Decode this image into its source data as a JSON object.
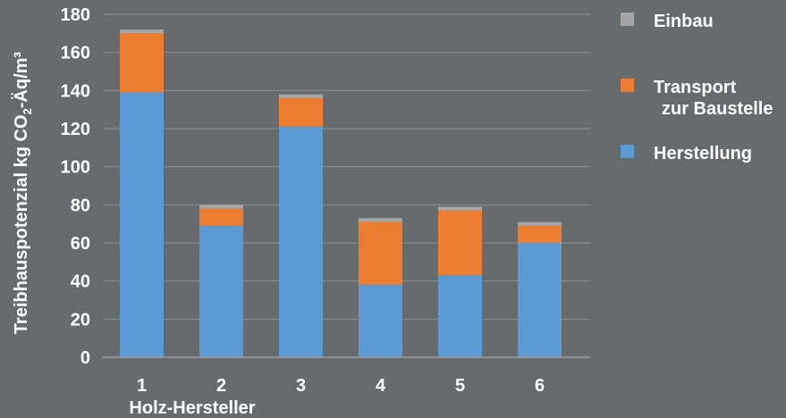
{
  "chart_data": {
    "type": "bar",
    "stacked": true,
    "categories": [
      "1",
      "2",
      "3",
      "4",
      "5",
      "6"
    ],
    "series": [
      {
        "name": "Herstellung",
        "color": "#5b9bd5",
        "values": [
          139,
          69,
          121,
          38,
          43,
          60
        ]
      },
      {
        "name": "Transport zur Baustelle",
        "label_lines": [
          "Transport",
          "zur Baustelle"
        ],
        "color": "#ed7d31",
        "values": [
          31,
          9,
          15,
          33,
          34,
          9
        ]
      },
      {
        "name": "Einbau",
        "color": "#a5a5a5",
        "values": [
          2,
          2,
          2,
          2,
          2,
          2
        ]
      }
    ],
    "xlabel": "Holz-Hersteller",
    "ylabel_main": "Treibhauspotenzial kg CO",
    "ylabel_sub": "2",
    "ylabel_tail": "-Äq/m³",
    "ylim": [
      0,
      180
    ],
    "yticks": [
      0,
      20,
      40,
      60,
      80,
      100,
      120,
      140,
      160,
      180
    ],
    "grid": true,
    "legend_position": "right",
    "legend_order": [
      "Einbau",
      "Transport zur Baustelle",
      "Herstellung"
    ]
  }
}
